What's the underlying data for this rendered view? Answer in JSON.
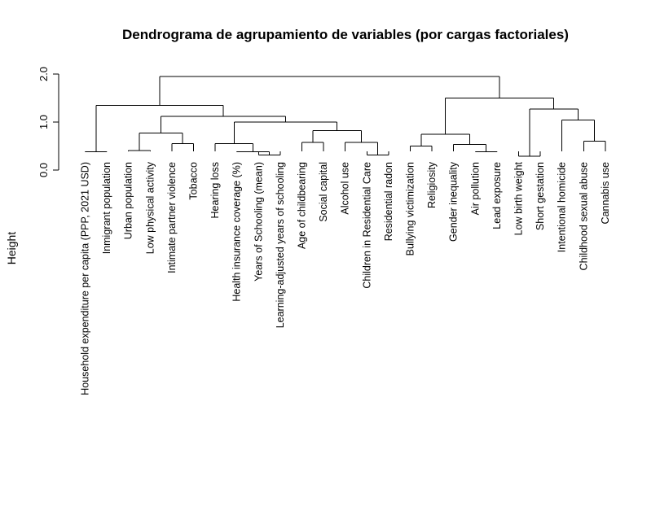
{
  "chart_data": {
    "type": "dendrogram",
    "title": "Dendrograma de agrupamiento de variables (por cargas factoriales)",
    "ylabel": "Height",
    "ylim": [
      0,
      2.0
    ],
    "y_ticks": [
      "0.0",
      "1.0",
      "2.0"
    ],
    "y_tick_values": [
      0,
      1,
      2
    ],
    "leaves": [
      "Household expenditure per capita (PPP, 2021 USD)",
      "Inmigrant population",
      "Urban population",
      "Low physical activity",
      "Intimate partner violence",
      "Tobacco",
      "Hearing loss",
      "Health insurance coverage (%)",
      "Years of Schooling (mean)",
      "Learning-adjusted years of schooling",
      "Age of childbearing",
      "Social capital",
      "Alcohol use",
      "Children in Residential Care",
      "Residential radon",
      "Bullying victimization",
      "Religiosity",
      "Gender inequality",
      "Air pollution",
      "Lead exposure",
      "Low birth weight",
      "Short gestation",
      "Intentional homicide",
      "Childhood sexual abuse",
      "Cannabis use"
    ],
    "merges": [
      {
        "a": "L1",
        "b": "L2",
        "height": 0.38
      },
      {
        "a": "L3",
        "b": "L4",
        "height": 0.41
      },
      {
        "a": "L5",
        "b": "L6",
        "height": 0.55
      },
      {
        "a": "N2",
        "b": "N3",
        "height": 0.77
      },
      {
        "a": "L9",
        "b": "L10",
        "height": 0.31
      },
      {
        "a": "L8",
        "b": "N5",
        "height": 0.38
      },
      {
        "a": "L7",
        "b": "N6",
        "height": 0.55
      },
      {
        "a": "L11",
        "b": "L12",
        "height": 0.58
      },
      {
        "a": "L14",
        "b": "L15",
        "height": 0.31
      },
      {
        "a": "L13",
        "b": "N9",
        "height": 0.58
      },
      {
        "a": "N8",
        "b": "N10",
        "height": 0.82
      },
      {
        "a": "N7",
        "b": "N11",
        "height": 1.0
      },
      {
        "a": "N4",
        "b": "N12",
        "height": 1.12
      },
      {
        "a": "L16",
        "b": "L17",
        "height": 0.5
      },
      {
        "a": "L19",
        "b": "L20",
        "height": 0.38
      },
      {
        "a": "L18",
        "b": "N15",
        "height": 0.53
      },
      {
        "a": "N14",
        "b": "N16",
        "height": 0.75
      },
      {
        "a": "L21",
        "b": "L22",
        "height": 0.29
      },
      {
        "a": "L24",
        "b": "L25",
        "height": 0.6
      },
      {
        "a": "L23",
        "b": "N19",
        "height": 1.04
      },
      {
        "a": "N18",
        "b": "N20",
        "height": 1.27
      },
      {
        "a": "N17",
        "b": "N21",
        "height": 1.5
      },
      {
        "a": "N1",
        "b": "N13",
        "height": 1.35
      },
      {
        "a": "N23",
        "b": "N22",
        "height": 1.95
      }
    ]
  }
}
